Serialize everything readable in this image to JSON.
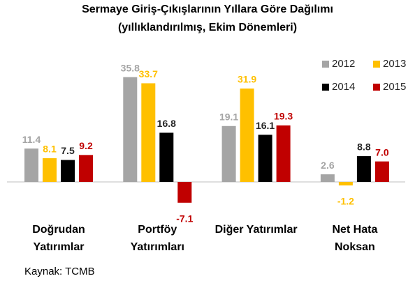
{
  "chart_data": {
    "type": "bar",
    "title": "Sermaye Giriş-Çıkışlarının Yıllara Göre Dağılımı",
    "subtitle": "(yıllıklandırılmış, Ekim Dönemleri)",
    "source": "Kaynak: TCMB",
    "categories": [
      "Doğrudan\nYatırımlar",
      "Portföy\nYatırımları",
      "Diğer Yatırımlar",
      "Net Hata\nNoksan"
    ],
    "series": [
      {
        "name": "2012",
        "color": "#a5a5a5",
        "values": [
          11.4,
          35.8,
          19.1,
          2.6
        ]
      },
      {
        "name": "2013",
        "color": "#ffc000",
        "values": [
          8.1,
          33.7,
          31.9,
          -1.2
        ]
      },
      {
        "name": "2014",
        "color": "#000000",
        "values": [
          7.5,
          16.8,
          16.1,
          8.8
        ]
      },
      {
        "name": "2015",
        "color": "#c00000",
        "values": [
          9.2,
          -7.1,
          19.3,
          7.0
        ],
        "value_labels": [
          "9.2",
          "-7.1",
          "19.3",
          "7.0"
        ]
      }
    ],
    "ylim": [
      -10,
      38
    ],
    "legend": "top-right"
  }
}
